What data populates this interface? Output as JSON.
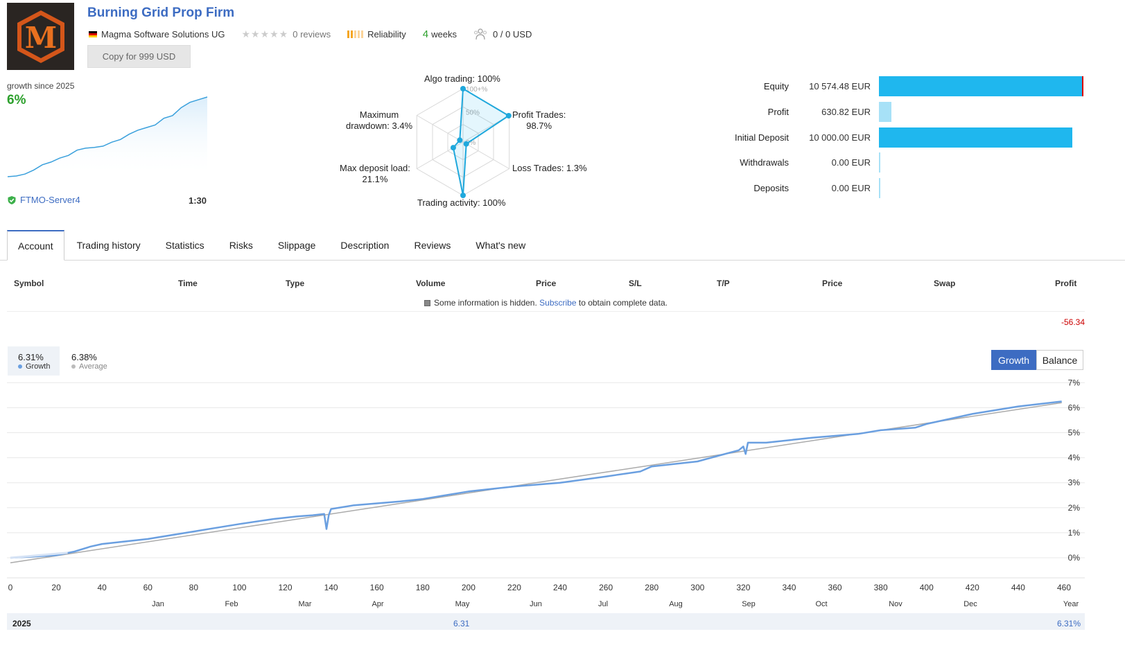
{
  "header": {
    "title": "Burning Grid Prop Firm",
    "logo_letter": "M",
    "provider": "Magma Software Solutions UG",
    "reviews": "0 reviews",
    "reliability": "Reliability",
    "weeks_num": "4",
    "weeks_label": "weeks",
    "subscribers": "0 / 0 USD",
    "copy_button": "Copy for 999 USD"
  },
  "growth": {
    "label": "growth since 2025",
    "value": "6%",
    "server": "FTMO-Server4",
    "leverage": "1:30"
  },
  "radar": {
    "algo": "Algo trading: 100%",
    "profit_trades_1": "Profit Trades:",
    "profit_trades_2": "98.7%",
    "loss_trades": "Loss Trades: 1.3%",
    "trading_activity": "Trading activity: 100%",
    "max_deposit_1": "Max deposit load:",
    "max_deposit_2": "21.1%",
    "max_dd_1": "Maximum",
    "max_dd_2": "drawdown: 3.4%",
    "tick_100": "100+%",
    "tick_50": "50%",
    "tick_0": "0%",
    "values": {
      "algo": 100,
      "profit_trades": 98.7,
      "loss_trades": 1.3,
      "trading_activity": 100,
      "max_deposit_load": 21.1,
      "max_drawdown": 3.4
    }
  },
  "summary": [
    {
      "label": "Equity",
      "value": "10 574.48 EUR",
      "ratio": 1.0,
      "color": "#1fb7ee"
    },
    {
      "label": "Profit",
      "value": "630.82 EUR",
      "ratio": 0.06,
      "color": "#a7e1f7"
    },
    {
      "label": "Initial Deposit",
      "value": "10 000.00 EUR",
      "ratio": 0.945,
      "color": "#1fb7ee"
    },
    {
      "label": "Withdrawals",
      "value": "0.00 EUR",
      "ratio": 0,
      "color": "#a7e1f7"
    },
    {
      "label": "Deposits",
      "value": "0.00 EUR",
      "ratio": 0,
      "color": "#a7e1f7"
    }
  ],
  "tabs": [
    "Account",
    "Trading history",
    "Statistics",
    "Risks",
    "Slippage",
    "Description",
    "Reviews",
    "What's new"
  ],
  "table": {
    "headers": [
      "Symbol",
      "Time",
      "Type",
      "Volume",
      "Price",
      "S/L",
      "T/P",
      "Price",
      "Swap",
      "Profit"
    ],
    "hidden_note": "Some information is hidden.",
    "subscribe": "Subscribe",
    "hidden_note_end": "to obtain complete data.",
    "profit_total": "-56.34"
  },
  "chart": {
    "growth_value": "6.31%",
    "growth_label": "Growth",
    "average_value": "6.38%",
    "average_label": "Average",
    "btn_growth": "Growth",
    "btn_balance": "Balance",
    "year": "2025",
    "year_mid": "6.31",
    "year_total": "6.31%"
  },
  "chart_data": {
    "type": "line",
    "xlabel": "",
    "ylabel": "",
    "xlim": [
      0,
      460
    ],
    "ylim": [
      -1,
      7
    ],
    "x_ticks": [
      0,
      20,
      40,
      60,
      80,
      100,
      120,
      140,
      160,
      180,
      200,
      220,
      240,
      260,
      280,
      300,
      320,
      340,
      360,
      380,
      400,
      420,
      440,
      460
    ],
    "y_ticks": [
      "0%",
      "1%",
      "2%",
      "3%",
      "4%",
      "5%",
      "6%",
      "7%"
    ],
    "months": [
      "Jan",
      "Feb",
      "Mar",
      "Apr",
      "May",
      "Jun",
      "Jul",
      "Aug",
      "Sep",
      "Oct",
      "Nov",
      "Dec",
      "Year"
    ],
    "series": [
      {
        "name": "Growth",
        "color": "#6a9fe0",
        "x": [
          0,
          10,
          20,
          28,
          35,
          40,
          60,
          80,
          90,
          100,
          115,
          125,
          132,
          137,
          138,
          139,
          140,
          150,
          170,
          180,
          200,
          220,
          240,
          260,
          275,
          280,
          300,
          310,
          318,
          320,
          321,
          322,
          330,
          350,
          370,
          380,
          395,
          400,
          420,
          440,
          459
        ],
        "y": [
          0.0,
          0.05,
          0.1,
          0.25,
          0.45,
          0.55,
          0.75,
          1.05,
          1.2,
          1.35,
          1.55,
          1.65,
          1.7,
          1.75,
          1.15,
          1.7,
          1.95,
          2.1,
          2.25,
          2.35,
          2.65,
          2.85,
          3.0,
          3.25,
          3.45,
          3.65,
          3.85,
          4.1,
          4.3,
          4.45,
          4.15,
          4.6,
          4.6,
          4.8,
          4.95,
          5.1,
          5.2,
          5.35,
          5.75,
          6.05,
          6.25
        ]
      },
      {
        "name": "Average",
        "color": "#aaaaaa",
        "x": [
          0,
          459
        ],
        "y": [
          -0.2,
          6.2
        ]
      }
    ]
  },
  "mini_chart": {
    "values": [
      0.0,
      0.05,
      0.2,
      0.5,
      0.9,
      1.1,
      1.4,
      1.6,
      2.0,
      2.15,
      2.2,
      2.3,
      2.6,
      2.8,
      3.2,
      3.5,
      3.7,
      3.9,
      4.4,
      4.6,
      5.2,
      5.6,
      5.8,
      6.0
    ]
  }
}
